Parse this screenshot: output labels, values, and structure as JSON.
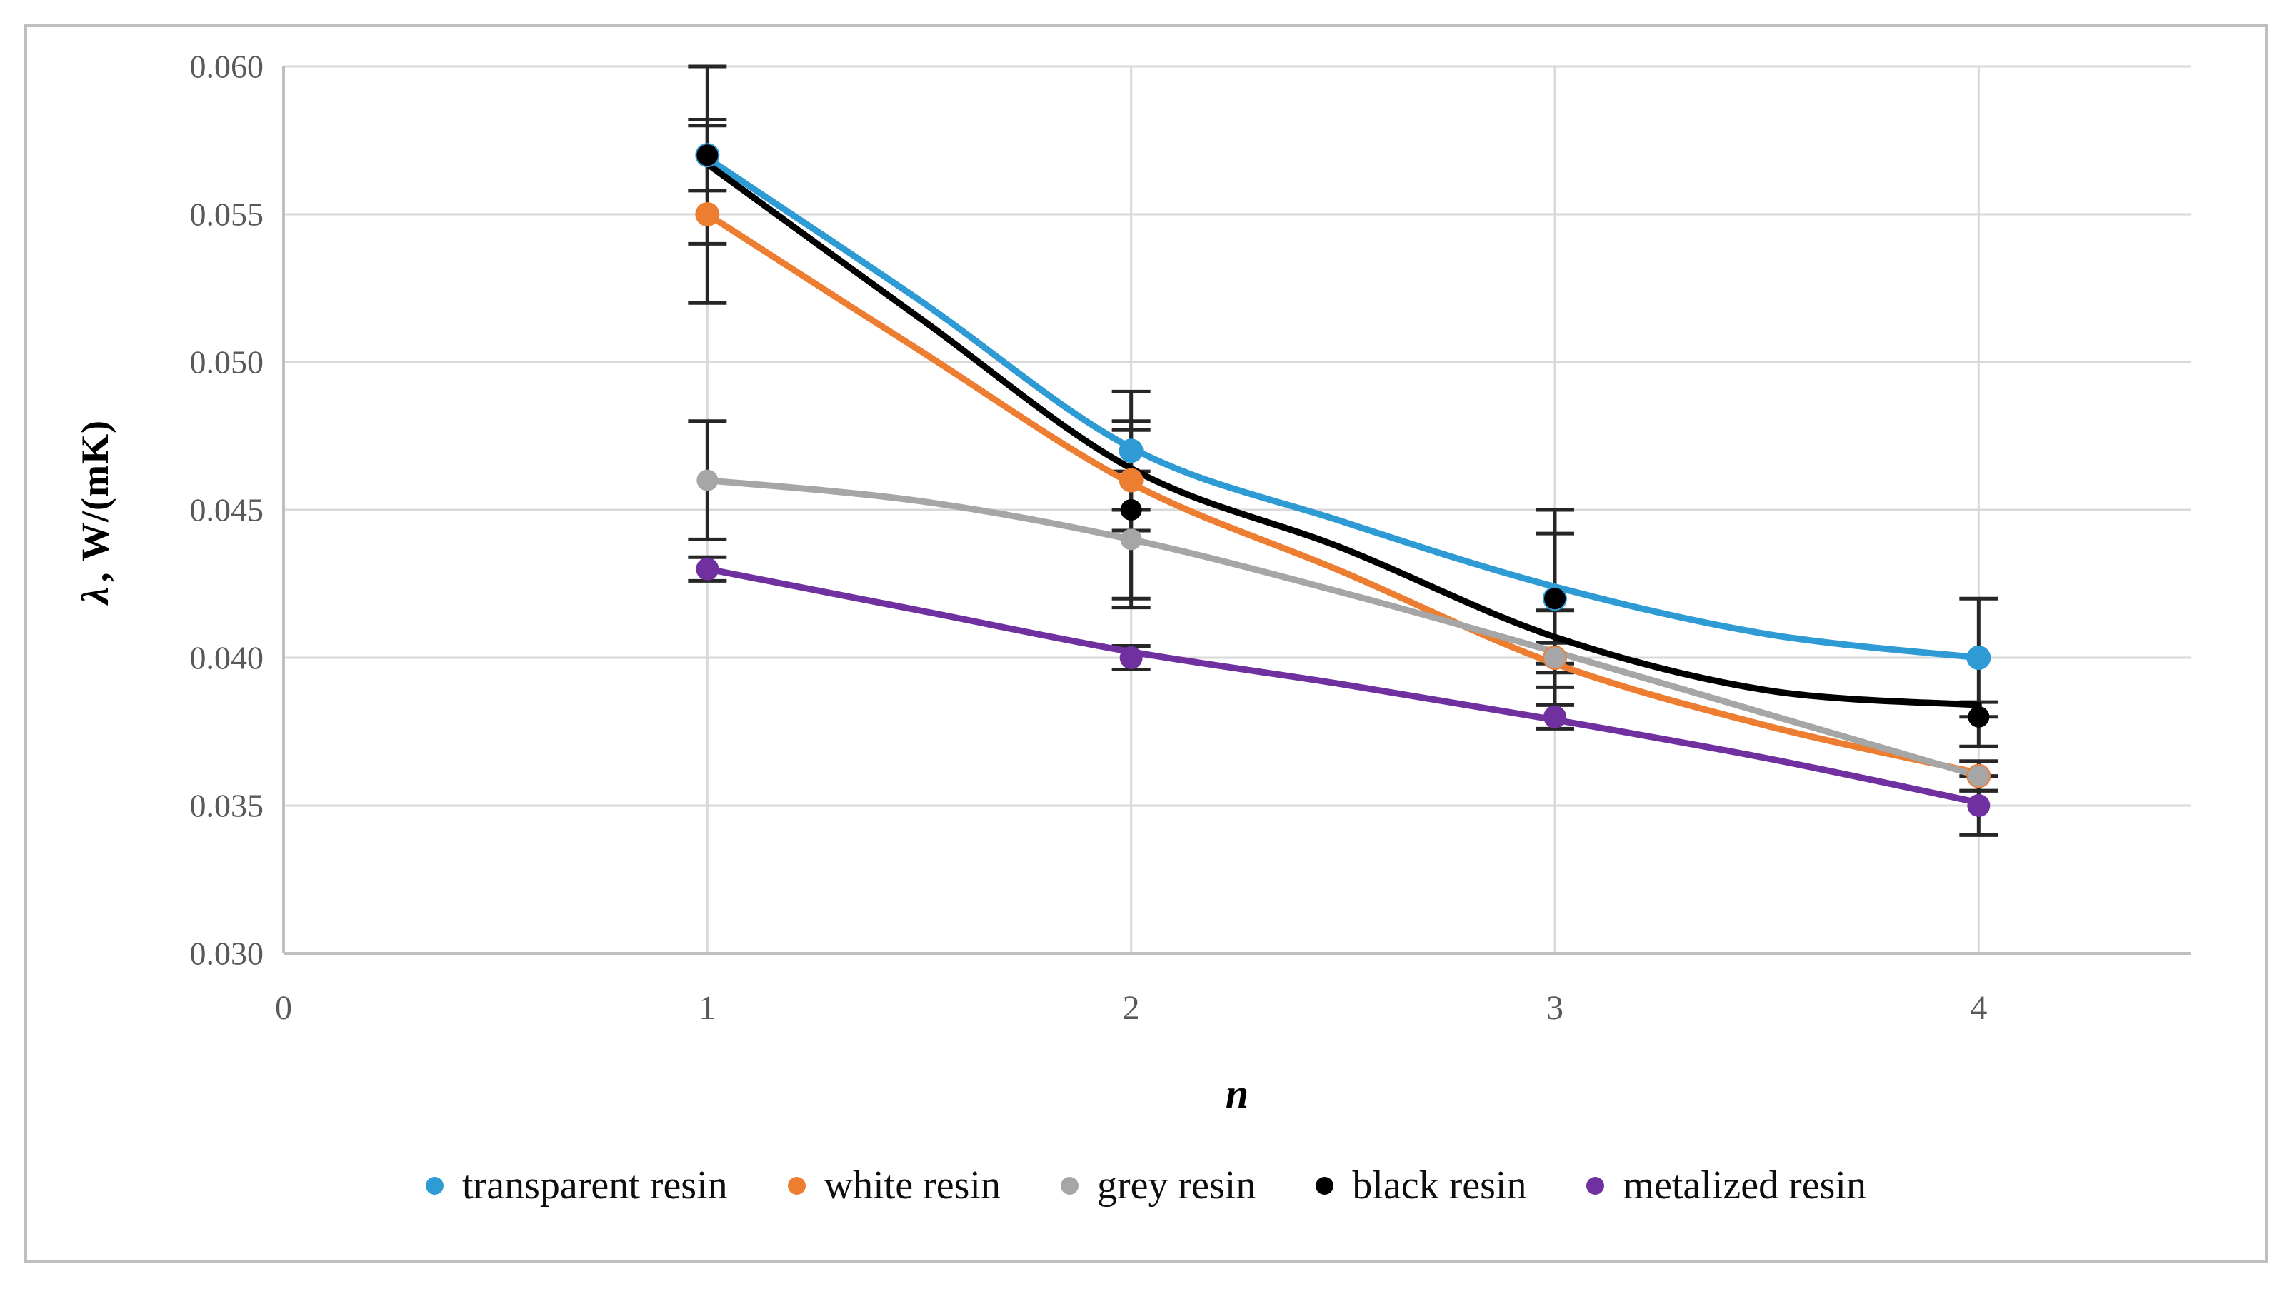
{
  "figure": {
    "background": "#FFFFFF",
    "border_color": "#BFBFBF"
  },
  "chart_data": {
    "type": "line",
    "title": "",
    "x_axis": {
      "title": "n",
      "min": 0,
      "max": 4.5,
      "ticks": [
        0,
        1,
        2,
        3,
        4
      ],
      "tick_labels": [
        "0",
        "1",
        "2",
        "3",
        "4"
      ],
      "tick_color": "#595959"
    },
    "y_axis": {
      "title_symbol": "λ",
      "title_rest": ", W/(mK)",
      "min": 0.03,
      "max": 0.06,
      "tick_step": 0.005,
      "tick_values": [
        0.03,
        0.035,
        0.04,
        0.045,
        0.05,
        0.055,
        0.06
      ],
      "tick_labels": [
        "0.030",
        "0.035",
        "0.040",
        "0.045",
        "0.050",
        "0.055",
        "0.060"
      ],
      "tick_color": "#595959"
    },
    "grid": true,
    "grid_color": "#D9D9D9",
    "axis_line_color": "#BFBFBF",
    "error_bar_color": "#262626",
    "legend_position": "bottom",
    "x": [
      1,
      2,
      3,
      4
    ],
    "series": [
      {
        "name": "transparent resin",
        "color": "#2E9BD5",
        "marker_radius": 17,
        "values": [
          0.057,
          0.047,
          0.042,
          0.04
        ],
        "err_plus": [
          0.003,
          0.002,
          0.0022,
          0.002
        ],
        "err_minus": [
          0.003,
          0.002,
          0.0022,
          0.002
        ],
        "trend": [
          [
            1,
            0.0569
          ],
          [
            1.5,
            0.0521
          ],
          [
            2,
            0.0471
          ],
          [
            2.5,
            0.0446
          ],
          [
            3,
            0.0424
          ],
          [
            3.5,
            0.0408
          ],
          [
            4,
            0.04
          ]
        ]
      },
      {
        "name": "white resin",
        "color": "#ED7D31",
        "marker_radius": 17,
        "values": [
          0.055,
          0.046,
          0.04,
          0.036
        ],
        "err_plus": [
          0.003,
          0.0017,
          0.0005,
          0.0005
        ],
        "err_minus": [
          0.003,
          0.0017,
          0.0005,
          0.0005
        ],
        "trend": [
          [
            1,
            0.055
          ],
          [
            1.5,
            0.0504
          ],
          [
            2,
            0.0459
          ],
          [
            2.5,
            0.0429
          ],
          [
            3,
            0.0398
          ],
          [
            3.5,
            0.0377
          ],
          [
            4,
            0.0361
          ]
        ]
      },
      {
        "name": "grey resin",
        "color": "#A6A6A6",
        "marker_radius": 15,
        "values": [
          0.046,
          0.044,
          0.04,
          0.036
        ],
        "err_plus": [
          0.002,
          0.0023,
          0.0016,
          0.0005
        ],
        "err_minus": [
          0.002,
          0.0023,
          0.0016,
          0.0005
        ],
        "trend": [
          [
            1,
            0.046
          ],
          [
            1.5,
            0.0453
          ],
          [
            2,
            0.044
          ],
          [
            2.5,
            0.0422
          ],
          [
            3,
            0.0402
          ],
          [
            3.5,
            0.0381
          ],
          [
            4,
            0.036
          ]
        ]
      },
      {
        "name": "black resin",
        "color": "#000000",
        "marker_radius": 15,
        "values": [
          0.057,
          0.045,
          0.042,
          0.038
        ],
        "err_plus": [
          0.0012,
          0.003,
          0.003,
          0.0005
        ],
        "err_minus": [
          0.0012,
          0.003,
          0.003,
          0.001
        ],
        "trend": [
          [
            1,
            0.0567
          ],
          [
            1.5,
            0.0515
          ],
          [
            2,
            0.0464
          ],
          [
            2.5,
            0.0437
          ],
          [
            3,
            0.0407
          ],
          [
            3.5,
            0.0389
          ],
          [
            4,
            0.0384
          ]
        ]
      },
      {
        "name": "metalized resin",
        "color": "#7030A0",
        "marker_radius": 16,
        "values": [
          0.043,
          0.04,
          0.038,
          0.035
        ],
        "err_plus": [
          0.0004,
          0.0004,
          0.0004,
          0.001
        ],
        "err_minus": [
          0.0004,
          0.0004,
          0.0004,
          0.001
        ],
        "trend": [
          [
            1,
            0.043
          ],
          [
            1.5,
            0.0416
          ],
          [
            2,
            0.0402
          ],
          [
            2.5,
            0.0391
          ],
          [
            3,
            0.0379
          ],
          [
            3.5,
            0.0366
          ],
          [
            4,
            0.0351
          ]
        ]
      }
    ]
  }
}
